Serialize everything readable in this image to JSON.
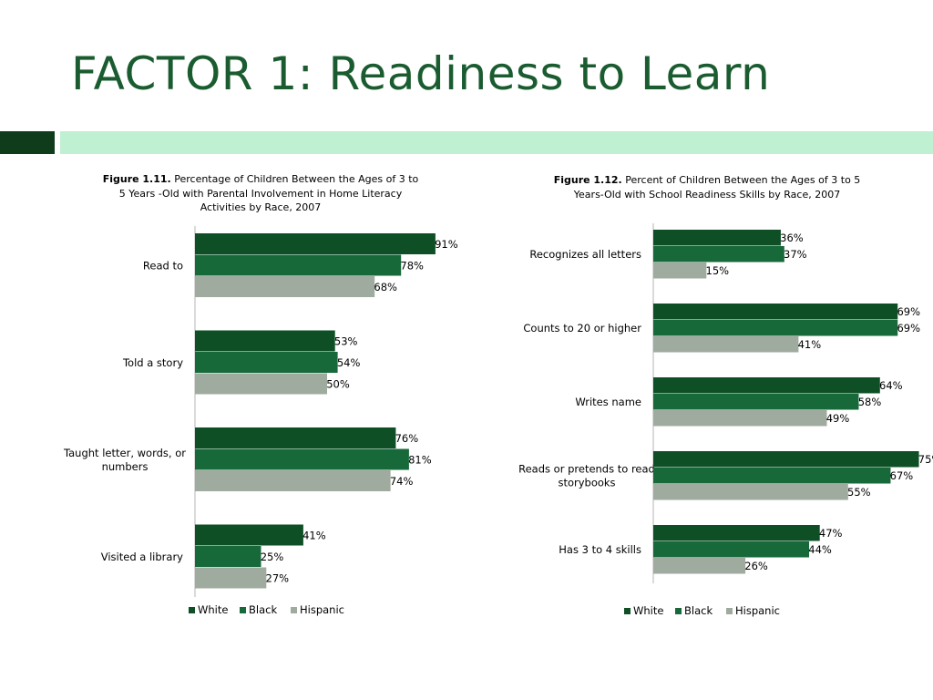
{
  "slide": {
    "title": "FACTOR 1: Readiness to Learn",
    "accent_dark": "#0f3d1c",
    "accent_light": "#bff0d2",
    "title_color": "#1a5c30"
  },
  "chart_data": [
    {
      "type": "bar",
      "orientation": "horizontal",
      "figure_label": "Figure 1.11.",
      "caption": "Percentage of Children Between the Ages of 3 to 5 Years -Old with Parental Involvement in Home Literacy Activities by Race, 2007",
      "categories": [
        "Read to",
        "Told a story",
        "Taught letter, words, or numbers",
        "Visited a library"
      ],
      "series": [
        {
          "name": "White",
          "color": "#0e4f25",
          "values": [
            91,
            53,
            76,
            41
          ]
        },
        {
          "name": "Black",
          "color": "#17693a",
          "values": [
            78,
            54,
            81,
            25
          ]
        },
        {
          "name": "Hispanic",
          "color": "#a0ab9f",
          "values": [
            68,
            50,
            74,
            27
          ]
        }
      ],
      "value_suffix": "%",
      "xlim": [
        0,
        100
      ],
      "grid": false,
      "legend_position": "bottom"
    },
    {
      "type": "bar",
      "orientation": "horizontal",
      "figure_label": "Figure 1.12.",
      "caption": "Percent of Children Between the Ages of 3 to 5 Years-Old with School Readiness Skills by Race, 2007",
      "categories": [
        "Recognizes all letters",
        "Counts to 20 or higher",
        "Writes name",
        "Reads or pretends to read storybooks",
        "Has 3 to 4 skills"
      ],
      "series": [
        {
          "name": "White",
          "color": "#0e4f25",
          "values": [
            36,
            69,
            64,
            75,
            47
          ]
        },
        {
          "name": "Black",
          "color": "#17693a",
          "values": [
            37,
            69,
            58,
            67,
            44
          ]
        },
        {
          "name": "Hispanic",
          "color": "#a0ab9f",
          "values": [
            15,
            41,
            49,
            55,
            26
          ]
        }
      ],
      "value_suffix": "%",
      "xlim": [
        0,
        80
      ],
      "grid": false,
      "legend_position": "bottom"
    }
  ]
}
